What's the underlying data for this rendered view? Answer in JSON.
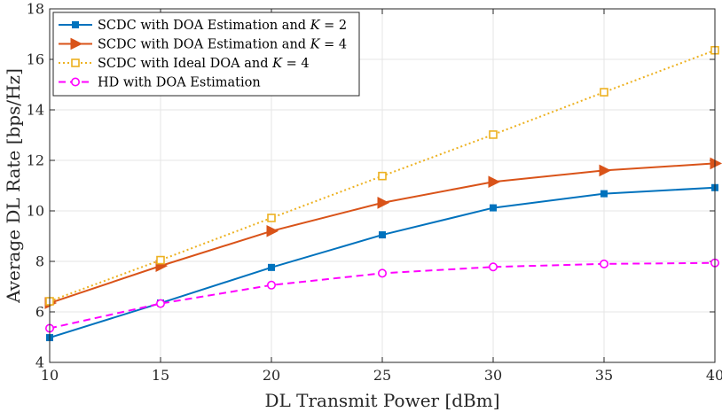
{
  "chart_data": {
    "type": "line",
    "title": "",
    "xlabel": "DL Transmit Power [dBm]",
    "ylabel": "Average DL Rate [bps/Hz]",
    "xlim": [
      10,
      40
    ],
    "ylim": [
      4,
      18
    ],
    "xticks": [
      10,
      15,
      20,
      25,
      30,
      35,
      40
    ],
    "yticks": [
      4,
      6,
      8,
      10,
      12,
      14,
      16,
      18
    ],
    "grid": true,
    "legend_position": "top-left",
    "x": [
      10,
      15,
      20,
      25,
      30,
      35,
      40
    ],
    "series": [
      {
        "name": "SCDC with DOA Estimation and K = 2",
        "legend": {
          "prefix": "SCDC with DOA Estimation and ",
          "var": "K",
          "suffix": " = 2"
        },
        "values": [
          4.98,
          6.35,
          7.76,
          9.05,
          10.12,
          10.68,
          10.92
        ],
        "color": "#0072bd",
        "marker": "square-filled",
        "line": "solid"
      },
      {
        "name": "SCDC with DOA Estimation and K = 4",
        "legend": {
          "prefix": "SCDC with DOA Estimation and ",
          "var": "K",
          "suffix": " = 4"
        },
        "values": [
          6.35,
          7.82,
          9.2,
          10.32,
          11.15,
          11.6,
          11.88
        ],
        "color": "#d95319",
        "marker": "triangle-right-filled",
        "line": "solid"
      },
      {
        "name": "SCDC with Ideal DOA and K = 4",
        "legend": {
          "prefix": "SCDC with Ideal DOA and ",
          "var": "K",
          "suffix": " = 4"
        },
        "values": [
          6.42,
          8.05,
          9.72,
          11.38,
          13.02,
          14.7,
          16.36
        ],
        "color": "#edb120",
        "marker": "square-open",
        "line": "dotted"
      },
      {
        "name": "HD with DOA Estimation",
        "legend": {
          "prefix": "HD with DOA Estimation",
          "var": "",
          "suffix": ""
        },
        "values": [
          5.35,
          6.33,
          7.06,
          7.53,
          7.78,
          7.9,
          7.94
        ],
        "color": "#ff00ff",
        "marker": "circle-open",
        "line": "dashed"
      }
    ]
  }
}
